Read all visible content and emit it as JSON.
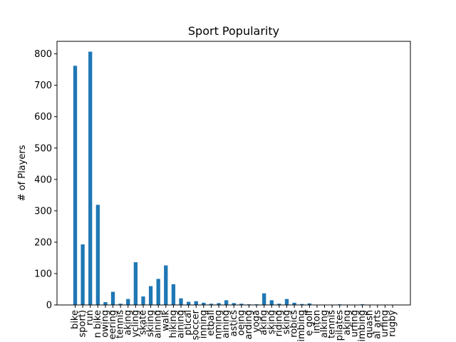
{
  "chart_data": {
    "type": "bar",
    "title": "Sport Popularity",
    "xlabel": "",
    "ylabel": "# of Players",
    "ylim": [
      0,
      840
    ],
    "yticks": [
      0,
      100,
      200,
      300,
      400,
      500,
      600,
      700,
      800
    ],
    "bar_color": "#1f77b4",
    "grid": false,
    "categories": [
      "bike",
      "sport)",
      "run",
      "n bike",
      "owing",
      "eering",
      "tennis",
      "aking",
      "ycling",
      "skate",
      "skiing",
      "aining",
      "walk",
      "hiking",
      "aining",
      "ptical",
      "soccer",
      "inning",
      "etball",
      "nming",
      "aining",
      "astics",
      "oeing",
      "arding",
      "yoga",
      "aking",
      "sking",
      "riding",
      "sking",
      "robics",
      "limbing",
      "e golf",
      "inton",
      "alking",
      "tennis",
      "pilates",
      "aking",
      "urfing",
      "imbing",
      "quash",
      "al arts",
      "urfing",
      "rugby"
    ],
    "values": [
      762,
      193,
      807,
      319,
      9,
      42,
      4,
      19,
      136,
      27,
      60,
      83,
      126,
      66,
      21,
      10,
      12,
      7,
      4,
      6,
      15,
      6,
      4,
      2,
      2,
      37,
      15,
      4,
      19,
      7,
      3,
      5,
      1,
      1,
      1,
      2,
      1,
      1,
      2,
      1,
      1,
      1,
      1
    ]
  }
}
